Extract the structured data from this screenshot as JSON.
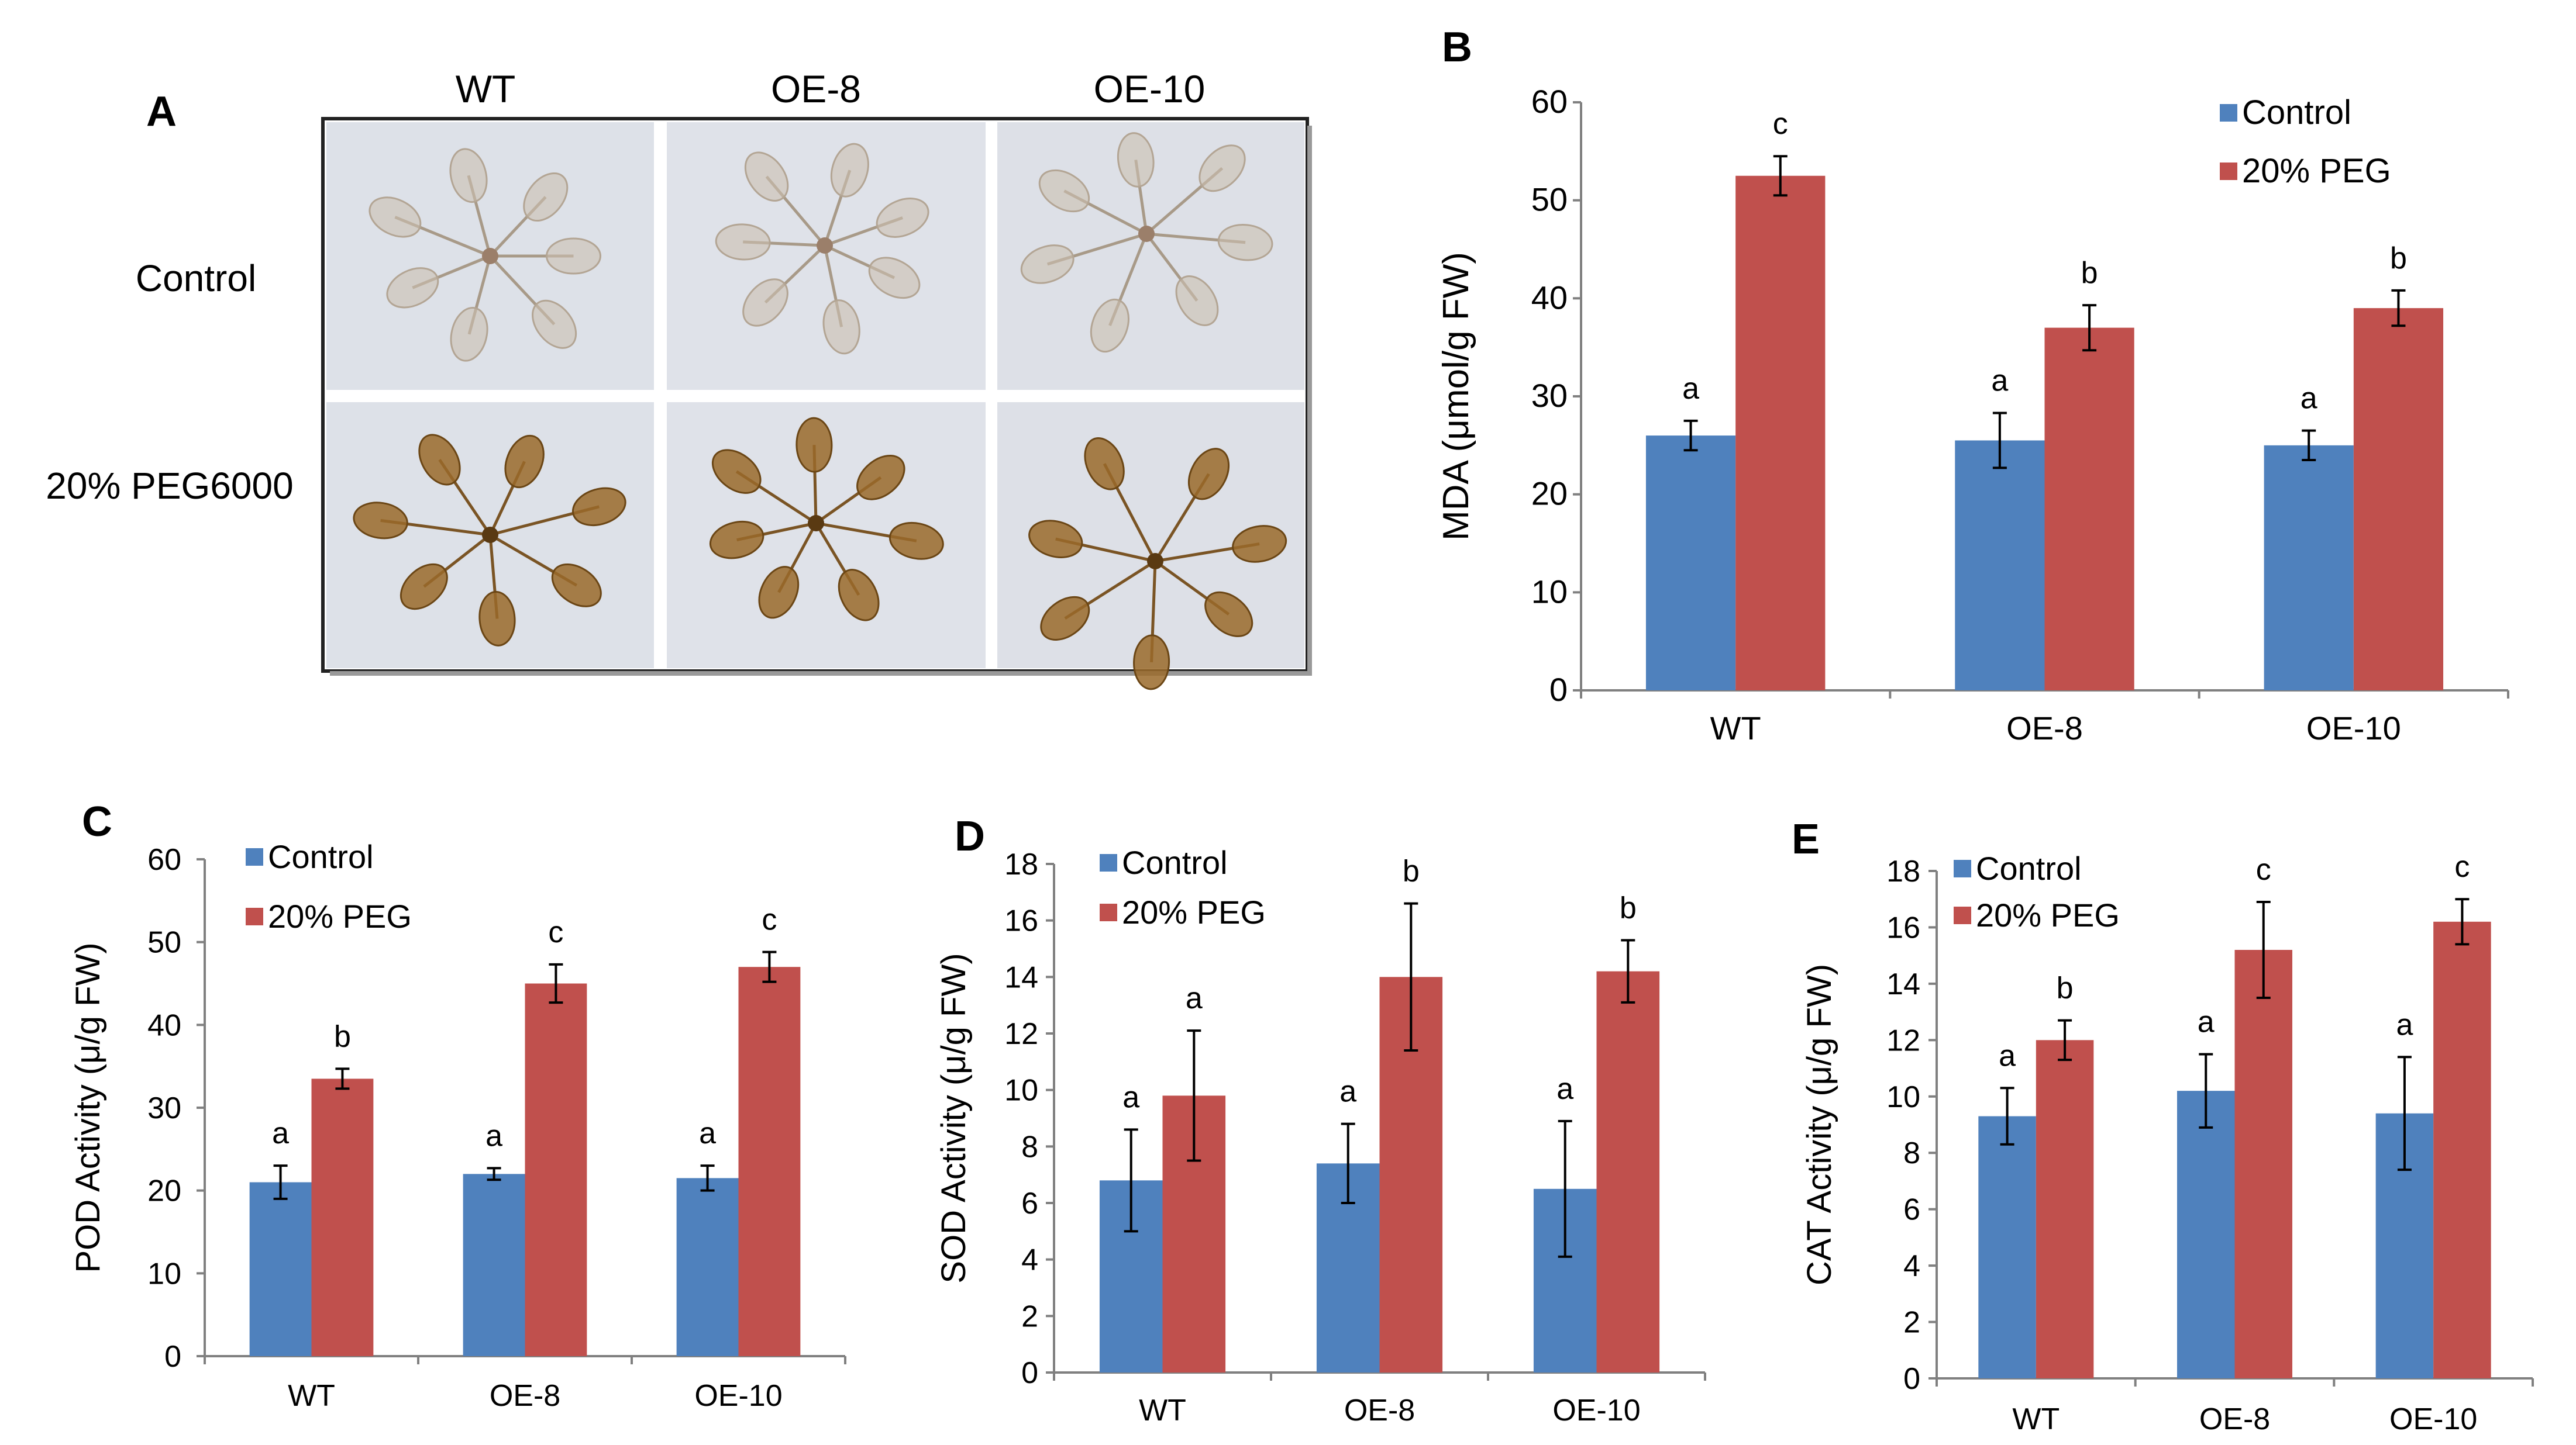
{
  "colors": {
    "control": "#4f81bd",
    "peg": "#c0504d",
    "axis": "#808080",
    "photo_bg": "#dfe3ea",
    "plant_control": "#cbbfb0",
    "plant_peg": "#9a6a2a"
  },
  "panel_a": {
    "letter": "A",
    "columns": [
      "WT",
      "OE-8",
      "OE-10"
    ],
    "rows": [
      "Control",
      "20% PEG6000"
    ],
    "photo_description": "plant-photographs"
  },
  "chart_data": [
    {
      "id": "B",
      "type": "bar",
      "letter": "B",
      "categories": [
        "WT",
        "OE-8",
        "OE-10"
      ],
      "ylabel": "MDA (μmol/g FW)",
      "ylim": [
        0,
        60
      ],
      "yticks": [
        0,
        10,
        20,
        30,
        40,
        50,
        60
      ],
      "legend_position": "top-right",
      "series": [
        {
          "name": "Control",
          "values": [
            26,
            25.5,
            25
          ],
          "errors": [
            1.5,
            2.8,
            1.5
          ],
          "sig": [
            "a",
            "a",
            "a"
          ]
        },
        {
          "name": "20% PEG",
          "values": [
            52.5,
            37,
            39
          ],
          "errors": [
            2,
            2.3,
            1.8
          ],
          "sig": [
            "c",
            "b",
            "b"
          ]
        }
      ]
    },
    {
      "id": "C",
      "type": "bar",
      "letter": "C",
      "categories": [
        "WT",
        "OE-8",
        "OE-10"
      ],
      "ylabel": "POD Activity (μ/g FW)",
      "ylim": [
        0,
        60
      ],
      "yticks": [
        0,
        10,
        20,
        30,
        40,
        50,
        60
      ],
      "legend_position": "top-left",
      "series": [
        {
          "name": "Control",
          "values": [
            21,
            22,
            21.5
          ],
          "errors": [
            2,
            0.7,
            1.5
          ],
          "sig": [
            "a",
            "a",
            "a"
          ]
        },
        {
          "name": "20% PEG",
          "values": [
            33.5,
            45,
            47
          ],
          "errors": [
            1.2,
            2.3,
            1.8
          ],
          "sig": [
            "b",
            "c",
            "c"
          ]
        }
      ]
    },
    {
      "id": "D",
      "type": "bar",
      "letter": "D",
      "categories": [
        "WT",
        "OE-8",
        "OE-10"
      ],
      "ylabel": "SOD Activity (μ/g FW)",
      "ylim": [
        0,
        18
      ],
      "yticks": [
        0,
        2,
        4,
        6,
        8,
        10,
        12,
        14,
        16,
        18
      ],
      "legend_position": "top-left",
      "series": [
        {
          "name": "Control",
          "values": [
            6.8,
            7.4,
            6.5
          ],
          "errors": [
            1.8,
            1.4,
            2.4
          ],
          "sig": [
            "a",
            "a",
            "a"
          ]
        },
        {
          "name": "20% PEG",
          "values": [
            9.8,
            14,
            14.2
          ],
          "errors": [
            2.3,
            2.6,
            1.1
          ],
          "sig": [
            "a",
            "b",
            "b"
          ]
        }
      ]
    },
    {
      "id": "E",
      "type": "bar",
      "letter": "E",
      "categories": [
        "WT",
        "OE-8",
        "OE-10"
      ],
      "ylabel": "CAT Activity (μ/g FW)",
      "ylim": [
        0,
        18
      ],
      "yticks": [
        0,
        2,
        4,
        6,
        8,
        10,
        12,
        14,
        16,
        18
      ],
      "legend_position": "top-left",
      "series": [
        {
          "name": "Control",
          "values": [
            9.3,
            10.2,
            9.4
          ],
          "errors": [
            1,
            1.3,
            2
          ],
          "sig": [
            "a",
            "a",
            "a"
          ]
        },
        {
          "name": "20% PEG",
          "values": [
            12,
            15.2,
            16.2
          ],
          "errors": [
            0.7,
            1.7,
            0.8
          ],
          "sig": [
            "b",
            "c",
            "c"
          ]
        }
      ]
    }
  ]
}
